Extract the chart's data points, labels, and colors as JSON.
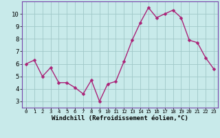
{
  "x": [
    0,
    1,
    2,
    3,
    4,
    5,
    6,
    7,
    8,
    9,
    10,
    11,
    12,
    13,
    14,
    15,
    16,
    17,
    18,
    19,
    20,
    21,
    22,
    23
  ],
  "y": [
    6.0,
    6.3,
    5.0,
    5.7,
    4.5,
    4.5,
    4.1,
    3.6,
    4.7,
    3.0,
    4.4,
    4.6,
    6.2,
    7.9,
    9.3,
    10.5,
    9.7,
    10.0,
    10.3,
    9.7,
    7.9,
    7.7,
    6.5,
    5.6
  ],
  "line_color": "#aa2277",
  "marker": "D",
  "markersize": 2.5,
  "linewidth": 1.0,
  "bg_color": "#c8eaea",
  "grid_color": "#a0c8c8",
  "xlabel": "Windchill (Refroidissement éolien,°C)",
  "xlabel_fontsize": 6.5,
  "ytick_fontsize": 6.5,
  "xtick_fontsize": 5.2,
  "ylim": [
    2.5,
    11.0
  ],
  "xlim": [
    -0.5,
    23.5
  ],
  "yticks": [
    3,
    4,
    5,
    6,
    7,
    8,
    9,
    10
  ],
  "xticks": [
    0,
    1,
    2,
    3,
    4,
    5,
    6,
    7,
    8,
    9,
    10,
    11,
    12,
    13,
    14,
    15,
    16,
    17,
    18,
    19,
    20,
    21,
    22,
    23
  ],
  "spine_color": "#7744aa"
}
